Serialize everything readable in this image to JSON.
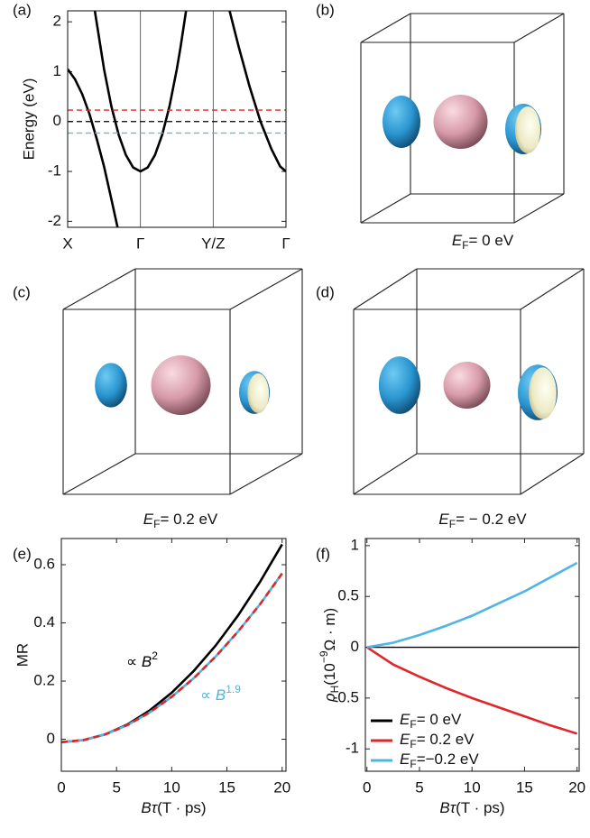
{
  "chart_data": [
    {
      "type": "line",
      "panel": "(a)",
      "ylabel": "Energy (eV)",
      "xlim": [
        0,
        3
      ],
      "xticks": [
        {
          "value": 0,
          "label": "X"
        },
        {
          "value": 1,
          "label": "Γ"
        },
        {
          "value": 2,
          "label": "Y/Z"
        },
        {
          "value": 3,
          "label": "Γ"
        }
      ],
      "xgrid": true,
      "ylim": [
        -2.12,
        2.22
      ],
      "yticks": [
        -2,
        -1,
        0,
        1,
        2
      ],
      "series": [
        {
          "color": "#000000",
          "dash": false,
          "x": [
            0,
            0.1,
            0.2,
            0.3,
            0.4,
            0.5,
            0.6,
            0.69
          ],
          "values": [
            1.05,
            0.85,
            0.55,
            0.15,
            -0.35,
            -0.9,
            -1.55,
            -2.15
          ]
        },
        {
          "color": "#000000",
          "dash": false,
          "x": [
            0.37,
            0.5,
            0.6,
            0.7,
            0.8,
            0.9,
            1.0,
            1.1,
            1.2,
            1.3,
            1.4,
            1.5,
            1.55,
            1.63
          ],
          "values": [
            2.25,
            1.05,
            0.31,
            -0.26,
            -0.67,
            -0.92,
            -1.0,
            -0.92,
            -0.67,
            -0.26,
            0.31,
            1.05,
            1.48,
            2.25
          ]
        },
        {
          "color": "#000000",
          "dash": false,
          "x": [
            2.22,
            2.35,
            2.5,
            2.65,
            2.8,
            2.92,
            3.0
          ],
          "values": [
            2.25,
            1.5,
            0.7,
            0.0,
            -0.55,
            -0.9,
            -1.0
          ]
        },
        {
          "color": "#e0262a",
          "dash": true,
          "x": [
            0,
            3
          ],
          "values": [
            0.23,
            0.23
          ]
        },
        {
          "color": "#000000",
          "dash": true,
          "x": [
            0,
            3
          ],
          "values": [
            0,
            0
          ]
        },
        {
          "color": "#4fb6e3",
          "dash": true,
          "x": [
            0,
            3
          ],
          "values": [
            -0.23,
            -0.23
          ]
        }
      ]
    },
    {
      "type": "line",
      "panel": "(e)",
      "ylabel": "MR",
      "xlabel": {
        "symbol": "Bτ",
        "unit": "(T · ps)"
      },
      "xlim": [
        0,
        20.35
      ],
      "xticks": [
        0,
        5,
        10,
        15,
        20
      ],
      "ylim": [
        -0.11,
        0.69
      ],
      "yticks": [
        0,
        0.2,
        0.4,
        0.6
      ],
      "series": [
        {
          "color": "#000000",
          "dash": false,
          "x": [
            0,
            2,
            4,
            6,
            8,
            10,
            12,
            14,
            16,
            18,
            20
          ],
          "values": [
            -0.01,
            -0.003,
            0.017,
            0.051,
            0.099,
            0.16,
            0.235,
            0.323,
            0.425,
            0.541,
            0.67
          ]
        },
        {
          "color": "#4fb6e3",
          "dash": false,
          "x": [
            0,
            2,
            4,
            6,
            8,
            10,
            12,
            14,
            16,
            18,
            20
          ],
          "values": [
            -0.01,
            -0.003,
            0.017,
            0.049,
            0.092,
            0.146,
            0.21,
            0.285,
            0.37,
            0.464,
            0.57
          ]
        },
        {
          "color": "#e0262a",
          "dash": true,
          "x": [
            0,
            2,
            4,
            6,
            8,
            10,
            12,
            14,
            16,
            18,
            20
          ],
          "values": [
            -0.01,
            -0.003,
            0.017,
            0.049,
            0.092,
            0.146,
            0.21,
            0.285,
            0.37,
            0.464,
            0.57
          ]
        }
      ],
      "annotations": [
        {
          "prefix": "∝ ",
          "symbol": "B",
          "exponent": "2",
          "color": "#000000"
        },
        {
          "prefix": "∝ ",
          "symbol": "B",
          "exponent": "1.9",
          "color": "#4fb6e3"
        }
      ]
    },
    {
      "type": "line",
      "panel": "(f)",
      "ylabel": {
        "symbol": "ρ",
        "subscript": "H",
        "text": "(10",
        "exponent": "−9",
        "unit": "Ω · m)"
      },
      "xlabel": {
        "symbol": "Bτ",
        "unit": "(T · ps)"
      },
      "xlim": [
        -0.15,
        20.2
      ],
      "xticks": [
        0,
        5,
        10,
        15,
        20
      ],
      "ylim": [
        -1.22,
        1.07
      ],
      "yticks": [
        -1,
        -0.5,
        0,
        0.5,
        1
      ],
      "legend": "lower left",
      "series": [
        {
          "symbol": "E",
          "subscript": "F",
          "name": "= 0 eV",
          "color": "#000000",
          "dash": false,
          "x": [
            0,
            20
          ],
          "values": [
            0,
            0
          ]
        },
        {
          "symbol": "E",
          "subscript": "F",
          "name": "= 0.2 eV",
          "color": "#e0262a",
          "dash": false,
          "x": [
            0,
            2.5,
            5,
            7.5,
            10,
            12.5,
            15,
            17.5,
            20
          ],
          "values": [
            0,
            -0.17,
            -0.29,
            -0.4,
            -0.5,
            -0.59,
            -0.68,
            -0.77,
            -0.85
          ]
        },
        {
          "symbol": "E",
          "subscript": "F",
          "name": "=−0.2 eV",
          "color": "#4fb6e3",
          "dash": false,
          "x": [
            0,
            2.5,
            5,
            7.5,
            10,
            12.5,
            15,
            17.5,
            20
          ],
          "values": [
            0,
            0.045,
            0.12,
            0.21,
            0.31,
            0.43,
            0.55,
            0.69,
            0.83
          ]
        }
      ]
    }
  ],
  "fermi_surfaces": [
    {
      "panel": "(b)",
      "caption": {
        "symbol": "E",
        "subscript": "F",
        "text": "= 0 eV"
      }
    },
    {
      "panel": "(c)",
      "caption": {
        "symbol": "E",
        "subscript": "F",
        "text": "= 0.2 eV"
      }
    },
    {
      "panel": "(d)",
      "caption": {
        "symbol": "E",
        "subscript": "F",
        "text": "= − 0.2 eV"
      }
    }
  ]
}
